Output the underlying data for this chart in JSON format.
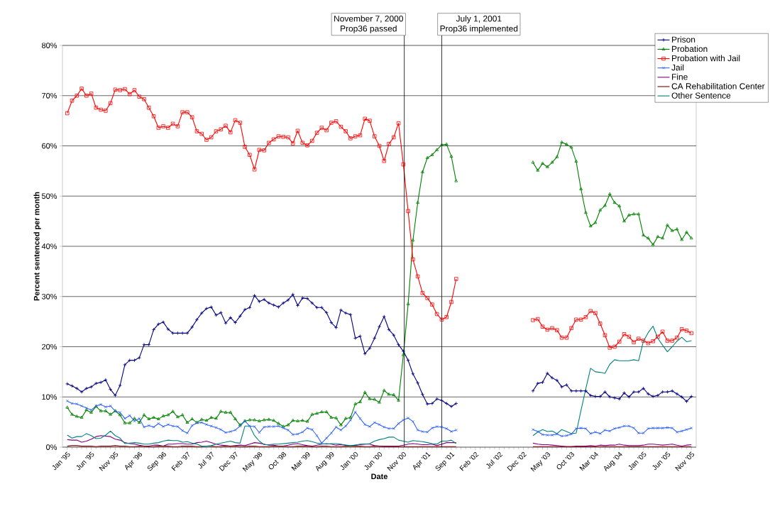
{
  "chart_data": {
    "type": "line",
    "xlabel": "Date",
    "ylabel": "Percent sentenced per month",
    "x": [
      "1995-01",
      "1995-02",
      "1995-03",
      "1995-04",
      "1995-05",
      "1995-06",
      "1995-07",
      "1995-08",
      "1995-09",
      "1995-10",
      "1995-11",
      "1995-12",
      "1996-01",
      "1996-02",
      "1996-03",
      "1996-04",
      "1996-05",
      "1996-06",
      "1996-07",
      "1996-08",
      "1996-09",
      "1996-10",
      "1996-11",
      "1996-12",
      "1997-01",
      "1997-02",
      "1997-03",
      "1997-04",
      "1997-05",
      "1997-06",
      "1997-07",
      "1997-08",
      "1997-09",
      "1997-10",
      "1997-11",
      "1997-12",
      "1998-01",
      "1998-02",
      "1998-03",
      "1998-04",
      "1998-05",
      "1998-06",
      "1998-07",
      "1998-08",
      "1998-09",
      "1998-10",
      "1998-11",
      "1998-12",
      "1999-01",
      "1999-02",
      "1999-03",
      "1999-04",
      "1999-05",
      "1999-06",
      "1999-07",
      "1999-08",
      "1999-09",
      "1999-10",
      "1999-11",
      "1999-12",
      "2000-01",
      "2000-02",
      "2000-03",
      "2000-04",
      "2000-05",
      "2000-06",
      "2000-07",
      "2000-08",
      "2000-09",
      "2000-10",
      "2000-11",
      "2000-12",
      "2001-01",
      "2001-02",
      "2001-03",
      "2001-04",
      "2001-05",
      "2001-06",
      "2001-07",
      "2001-08",
      "2001-09",
      "2001-10",
      "2001-11",
      "2001-12",
      "2002-01",
      "2002-02",
      "2002-03",
      "2002-04",
      "2002-05",
      "2002-06",
      "2002-07",
      "2002-08",
      "2002-09",
      "2002-10",
      "2002-11",
      "2002-12",
      "2003-01",
      "2003-02",
      "2003-03",
      "2003-04",
      "2003-05",
      "2003-06",
      "2003-07",
      "2003-08",
      "2003-09",
      "2003-10",
      "2003-11",
      "2003-12",
      "2004-01",
      "2004-02",
      "2004-03",
      "2004-04",
      "2004-05",
      "2004-06",
      "2004-07",
      "2004-08",
      "2004-09",
      "2004-10",
      "2004-11",
      "2004-12",
      "2005-01",
      "2005-02",
      "2005-03",
      "2005-04",
      "2005-05",
      "2005-06",
      "2005-07",
      "2005-08",
      "2005-09",
      "2005-10",
      "2005-11"
    ],
    "xlim": [
      "1994-12",
      "2005-12"
    ],
    "xticks": [
      {
        "value": "1995-01",
        "label": "Jan '95"
      },
      {
        "value": "1995-06",
        "label": "Jun '95"
      },
      {
        "value": "1995-11",
        "label": "Nov '95"
      },
      {
        "value": "1996-04",
        "label": "Apr '96"
      },
      {
        "value": "1996-09",
        "label": "Sep '96"
      },
      {
        "value": "1997-02",
        "label": "Feb '97"
      },
      {
        "value": "1997-07",
        "label": "Jul '97"
      },
      {
        "value": "1997-12",
        "label": "Dec '97"
      },
      {
        "value": "1998-05",
        "label": "May '98"
      },
      {
        "value": "1998-10",
        "label": "Oct '98"
      },
      {
        "value": "1999-03",
        "label": "Mar '99"
      },
      {
        "value": "1999-08",
        "label": "Aug '99"
      },
      {
        "value": "2000-01",
        "label": "Jan '00"
      },
      {
        "value": "2000-06",
        "label": "Jun '00"
      },
      {
        "value": "2000-11",
        "label": "Nov '00"
      },
      {
        "value": "2001-04",
        "label": "Apr '01"
      },
      {
        "value": "2001-09",
        "label": "Sep '01"
      },
      {
        "value": "2002-02",
        "label": "Feb '02"
      },
      {
        "value": "2002-07",
        "label": "Jul '02"
      },
      {
        "value": "2002-12",
        "label": "Dec '02"
      },
      {
        "value": "2003-05",
        "label": "May '03"
      },
      {
        "value": "2003-10",
        "label": "Oct '03"
      },
      {
        "value": "2004-03",
        "label": "Mar '04"
      },
      {
        "value": "2004-08",
        "label": "Aug '04"
      },
      {
        "value": "2005-01",
        "label": "Jan '05"
      },
      {
        "value": "2005-06",
        "label": "Jun '05"
      },
      {
        "value": "2005-11",
        "label": "Nov '05"
      }
    ],
    "ylim": [
      0,
      80
    ],
    "yticks": [
      {
        "value": 0,
        "label": "0%"
      },
      {
        "value": 10,
        "label": "10%"
      },
      {
        "value": 20,
        "label": "20%"
      },
      {
        "value": 30,
        "label": "30%"
      },
      {
        "value": 40,
        "label": "40%"
      },
      {
        "value": 50,
        "label": "50%"
      },
      {
        "value": 60,
        "label": "60%"
      },
      {
        "value": 70,
        "label": "70%"
      },
      {
        "value": 80,
        "label": "80%"
      }
    ],
    "grid": "y",
    "legend": "top right",
    "ref_lines": [
      {
        "axis": "x",
        "value": "2000-11-07",
        "label": [
          "November 7, 2000",
          "Prop36 passed"
        ]
      },
      {
        "axis": "x",
        "value": "2001-07-01",
        "label": [
          "July 1, 2001",
          "Prop36 implemented"
        ]
      }
    ],
    "series": [
      {
        "name": "Prison",
        "color": "#000080",
        "marker": "plus",
        "values": [
          12.6,
          12.2,
          11.7,
          11.0,
          11.7,
          12.0,
          12.7,
          12.9,
          13.4,
          11.5,
          10.3,
          12.3,
          16.4,
          17.3,
          17.3,
          17.8,
          20.4,
          20.4,
          23.4,
          24.5,
          24.9,
          23.5,
          22.7,
          22.7,
          22.7,
          22.7,
          23.9,
          25.4,
          26.7,
          27.6,
          27.9,
          26.3,
          26.8,
          24.7,
          25.8,
          24.8,
          26.1,
          27.4,
          27.8,
          30.2,
          29.0,
          29.4,
          28.7,
          28.3,
          27.9,
          28.7,
          29.3,
          30.4,
          28.2,
          29.7,
          29.6,
          28.7,
          27.8,
          27.8,
          26.8,
          24.8,
          23.8,
          27.3,
          26.7,
          26.4,
          21.7,
          22.1,
          18.6,
          19.7,
          21.7,
          24.0,
          26.0,
          23.4,
          22.3,
          20.4,
          19.1,
          17.3,
          14.6,
          12.8,
          10.5,
          8.6,
          8.7,
          9.6,
          9.3,
          8.7,
          8.1,
          8.7,
          null,
          null,
          null,
          null,
          null,
          null,
          null,
          null,
          null,
          null,
          null,
          null,
          null,
          null,
          null,
          11.2,
          12.7,
          12.9,
          14.7,
          13.8,
          13.3,
          12.0,
          12.4,
          11.2,
          11.2,
          11.2,
          11.2,
          10.3,
          10.1,
          10.1,
          11.0,
          10.0,
          9.8,
          9.6,
          10.8,
          10.0,
          11.0,
          11.0,
          11.7,
          10.6,
          10.1,
          10.3,
          11.0,
          11.0,
          11.2,
          10.6,
          10.0,
          9.1,
          10.1
        ]
      },
      {
        "name": "Probation",
        "color": "#008000",
        "marker": "triangle",
        "values": [
          7.9,
          6.5,
          6.1,
          5.9,
          7.4,
          6.9,
          8.1,
          7.2,
          7.2,
          6.5,
          7.2,
          6.4,
          4.8,
          4.8,
          5.7,
          4.9,
          6.4,
          5.6,
          5.9,
          5.6,
          6.2,
          6.4,
          7.1,
          6.0,
          6.4,
          4.9,
          5.6,
          4.9,
          5.5,
          5.3,
          5.9,
          5.7,
          7.1,
          6.9,
          6.9,
          5.6,
          4.4,
          5.2,
          5.4,
          5.4,
          5.2,
          5.4,
          5.5,
          5.3,
          4.7,
          4.1,
          4.4,
          5.3,
          5.2,
          5.3,
          5.1,
          6.5,
          6.7,
          7.0,
          7.0,
          5.9,
          5.8,
          4.4,
          5.7,
          5.9,
          8.6,
          9.0,
          10.9,
          9.6,
          9.5,
          8.9,
          11.3,
          10.5,
          10.4,
          9.3,
          18.4,
          28.5,
          41.2,
          48.7,
          54.8,
          57.6,
          58.2,
          59.2,
          60.2,
          60.3,
          57.9,
          53.0,
          null,
          null,
          null,
          null,
          null,
          null,
          null,
          null,
          null,
          null,
          null,
          null,
          null,
          null,
          null,
          56.7,
          55.1,
          56.5,
          55.8,
          56.7,
          57.8,
          60.7,
          60.3,
          59.7,
          56.9,
          51.4,
          46.7,
          44.0,
          44.7,
          47.2,
          48.1,
          50.4,
          48.7,
          48.0,
          45.0,
          46.2,
          46.4,
          46.4,
          42.2,
          41.6,
          40.3,
          41.9,
          41.6,
          44.2,
          43.1,
          43.4,
          41.3,
          42.8,
          41.6
        ]
      },
      {
        "name": "Probation with Jail",
        "color": "#ff0000",
        "marker": "square",
        "values": [
          66.5,
          69.0,
          70.0,
          71.4,
          70.0,
          70.4,
          67.6,
          67.2,
          67.0,
          68.5,
          71.2,
          71.1,
          71.3,
          70.3,
          71.1,
          69.8,
          69.3,
          67.6,
          65.9,
          63.6,
          63.9,
          63.6,
          64.4,
          63.9,
          66.7,
          66.7,
          65.7,
          62.9,
          62.4,
          61.2,
          61.7,
          62.9,
          63.3,
          64.0,
          62.7,
          65.1,
          64.6,
          59.8,
          58.2,
          55.3,
          59.2,
          59.1,
          60.6,
          61.3,
          61.9,
          61.8,
          61.7,
          60.5,
          63.0,
          60.6,
          60.1,
          61.0,
          62.6,
          63.6,
          63.1,
          64.6,
          64.9,
          63.8,
          62.9,
          61.5,
          61.9,
          62.1,
          65.4,
          65.0,
          61.9,
          60.0,
          57.0,
          60.4,
          61.7,
          64.5,
          56.3,
          47.0,
          37.4,
          34.0,
          30.7,
          29.7,
          28.4,
          26.5,
          25.4,
          25.9,
          28.9,
          33.5,
          null,
          null,
          null,
          null,
          null,
          null,
          null,
          null,
          null,
          null,
          null,
          null,
          null,
          null,
          null,
          25.3,
          25.5,
          24.0,
          23.4,
          23.7,
          23.3,
          21.8,
          21.8,
          23.7,
          25.4,
          25.4,
          25.9,
          27.1,
          26.7,
          24.6,
          22.3,
          19.8,
          20.0,
          21.0,
          22.5,
          22.0,
          20.9,
          21.6,
          21.2,
          20.7,
          21.1,
          22.0,
          23.0,
          21.2,
          21.2,
          21.8,
          23.5,
          23.2,
          22.7
        ]
      },
      {
        "name": "Jail",
        "color": "#3366ff",
        "marker": "cross",
        "values": [
          9.2,
          8.7,
          8.6,
          8.2,
          7.8,
          7.4,
          8.2,
          8.5,
          8.0,
          8.2,
          7.2,
          6.9,
          5.7,
          6.3,
          5.2,
          5.7,
          4.0,
          4.3,
          4.0,
          4.7,
          4.1,
          4.5,
          4.2,
          4.1,
          3.3,
          2.8,
          4.3,
          4.8,
          4.9,
          4.5,
          4.2,
          3.9,
          3.5,
          2.9,
          3.1,
          3.4,
          4.2,
          5.2,
          4.2,
          4.1,
          2.9,
          4.0,
          4.1,
          4.1,
          4.2,
          3.8,
          3.4,
          2.5,
          2.6,
          3.0,
          3.8,
          3.5,
          2.3,
          0.8,
          1.8,
          2.8,
          4.0,
          3.4,
          4.2,
          5.4,
          7.0,
          5.7,
          4.5,
          4.1,
          4.9,
          4.5,
          4.0,
          3.7,
          3.7,
          4.7,
          5.4,
          5.8,
          5.1,
          3.4,
          3.1,
          3.0,
          3.8,
          4.1,
          4.0,
          3.7,
          3.1,
          3.4,
          null,
          null,
          null,
          null,
          null,
          null,
          null,
          null,
          null,
          null,
          null,
          null,
          null,
          null,
          null,
          3.5,
          3.1,
          2.5,
          2.4,
          2.4,
          2.6,
          2.2,
          2.3,
          2.6,
          3.7,
          3.8,
          3.7,
          2.7,
          3.0,
          2.7,
          3.4,
          3.2,
          3.7,
          3.9,
          4.2,
          4.2,
          3.8,
          2.8,
          2.8,
          3.7,
          3.8,
          3.8,
          3.8,
          3.9,
          3.8,
          3.0,
          3.2,
          3.5,
          3.8
        ]
      },
      {
        "name": "Fine",
        "color": "#800080",
        "marker": "none",
        "values": [
          1.5,
          1.4,
          1.4,
          1.0,
          1.2,
          1.6,
          2.1,
          2.3,
          2.2,
          2.1,
          1.6,
          1.4,
          0.9,
          0.7,
          0.6,
          0.4,
          0.2,
          0.2,
          0.4,
          0.4,
          0.2,
          0.6,
          0.6,
          0.7,
          0.7,
          0.6,
          0.6,
          0.9,
          1.0,
          1.2,
          0.9,
          0.6,
          0.4,
          0.3,
          0.2,
          0.3,
          0.4,
          0.3,
          0.6,
          0.9,
          0.8,
          0.6,
          0.4,
          0.4,
          0.2,
          0.2,
          0.4,
          0.6,
          0.7,
          0.5,
          0.3,
          0.2,
          0.4,
          0.6,
          0.7,
          0.6,
          0.4,
          0.5,
          0.4,
          0.2,
          0.4,
          0.5,
          0.6,
          0.6,
          0.3,
          0.2,
          0.2,
          0.2,
          0.2,
          0.2,
          0.4,
          0.6,
          0.7,
          0.6,
          0.5,
          0.5,
          0.6,
          0.3,
          0.6,
          0.9,
          0.9,
          0.9,
          null,
          null,
          null,
          null,
          null,
          null,
          null,
          null,
          null,
          null,
          null,
          null,
          null,
          null,
          null,
          0.8,
          0.6,
          0.5,
          0.5,
          0.4,
          0.3,
          0.2,
          0.1,
          0.1,
          0.2,
          0.2,
          0.2,
          0.3,
          0.2,
          0.4,
          0.3,
          0.4,
          0.4,
          0.6,
          0.4,
          0.3,
          0.3,
          0.3,
          0.4,
          0.6,
          0.6,
          0.5,
          0.4,
          0.5,
          0.6,
          0.4,
          0.2,
          0.4,
          0.5
        ]
      },
      {
        "name": "CA Rehabilitation Center",
        "color": "#800000",
        "marker": "none",
        "values": [
          0.2,
          0.3,
          0.3,
          0.2,
          0.2,
          0.2,
          0.1,
          0.2,
          0.2,
          0.2,
          0.3,
          0.2,
          0.2,
          0.1,
          0.1,
          0.2,
          0.2,
          0.1,
          0.1,
          0.2,
          0.2,
          0.2,
          0.1,
          0.1,
          0.2,
          0.2,
          0.2,
          0.1,
          0.1,
          0.2,
          0.2,
          0.1,
          0.1,
          0.2,
          0.2,
          0.2,
          0.1,
          0.1,
          0.2,
          0.2,
          0.1,
          0.1,
          0.1,
          0.2,
          0.2,
          0.2,
          0.1,
          0.1,
          0.2,
          0.2,
          0.2,
          0.1,
          0.1,
          0.2,
          0.2,
          0.1,
          0.1,
          0.1,
          0.2,
          0.2,
          0.2,
          0.2,
          0.1,
          0.1,
          0.2,
          0.2,
          0.1,
          0.1,
          0.1,
          0.1,
          0.1,
          0.1,
          0.1,
          0.1,
          0.1,
          0.1,
          0.1,
          0.1,
          0.1,
          0.1,
          0.1,
          0.1,
          null,
          null,
          null,
          null,
          null,
          null,
          null,
          null,
          null,
          null,
          null,
          null,
          null,
          null,
          null,
          0.1,
          0.1,
          0.1,
          0.1,
          0.1,
          0.1,
          0.1,
          0.1,
          0.1,
          0.1,
          0.1,
          0.1,
          0.1,
          0.1,
          0.1,
          0.1,
          0.1,
          0.1,
          0.1,
          0.1,
          0.1,
          0.1,
          0.1,
          0.1,
          0.1,
          0.1,
          0.1,
          0.1,
          0.1,
          0.1,
          0.1,
          0.1,
          0.1,
          0.1
        ]
      },
      {
        "name": "Other Sentence",
        "color": "#008080",
        "marker": "none",
        "values": [
          2.4,
          1.8,
          2.1,
          2.1,
          2.7,
          2.3,
          1.7,
          1.8,
          2.4,
          3.2,
          2.3,
          1.8,
          0.7,
          0.8,
          0.9,
          0.8,
          0.6,
          0.6,
          0.8,
          0.9,
          1.2,
          1.4,
          1.3,
          1.3,
          1.0,
          1.1,
          0.8,
          0.6,
          0.2,
          0.2,
          0.3,
          0.6,
          0.8,
          1.0,
          1.2,
          0.9,
          0.8,
          4.2,
          4.2,
          2.3,
          1.2,
          0.5,
          0.5,
          0.6,
          0.6,
          0.7,
          0.8,
          0.9,
          1.0,
          1.2,
          1.3,
          1.1,
          0.8,
          0.7,
          0.6,
          0.7,
          0.7,
          0.6,
          0.4,
          0.3,
          0.4,
          0.6,
          0.6,
          0.7,
          1.2,
          1.5,
          1.7,
          2.0,
          2.0,
          1.4,
          1.2,
          1.0,
          1.3,
          1.2,
          1.1,
          0.9,
          0.7,
          0.6,
          1.2,
          1.2,
          1.4,
          0.7,
          null,
          null,
          null,
          null,
          null,
          null,
          null,
          null,
          null,
          null,
          null,
          null,
          null,
          null,
          null,
          2.3,
          3.0,
          3.5,
          3.1,
          3.2,
          2.7,
          3.5,
          3.1,
          2.7,
          2.8,
          7.3,
          11.6,
          15.7,
          15.0,
          14.9,
          14.7,
          16.5,
          17.4,
          17.2,
          17.2,
          17.2,
          17.4,
          17.2,
          21.1,
          22.8,
          24.1,
          21.7,
          20.3,
          19.0,
          20.0,
          21.1,
          21.9,
          21.0,
          21.2
        ]
      }
    ]
  }
}
